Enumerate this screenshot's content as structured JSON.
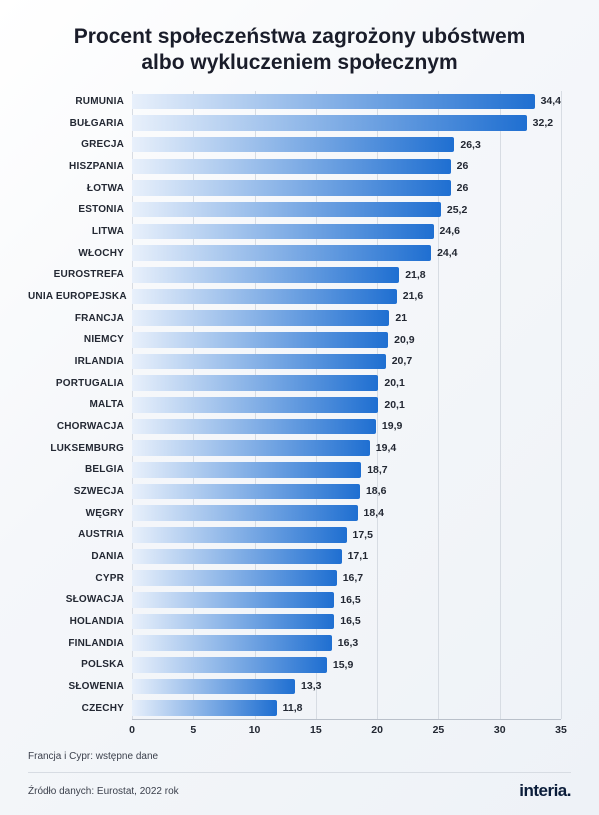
{
  "title_line1": "Procent społeczeństwa zagrożony ubóstwem",
  "title_line2": "albo wykluczeniem społecznym",
  "note": "Francja i Cypr: wstępne dane",
  "source": "Źródło danych: Eurostat, 2022 rok",
  "brand": "interia",
  "chart": {
    "type": "horizontal-bar",
    "xmin": 0,
    "xmax": 35,
    "tick_step": 5,
    "ticks": [
      0,
      5,
      10,
      15,
      20,
      25,
      30,
      35
    ],
    "bar_gradient_from": "#e8f0fb",
    "bar_gradient_to": "#1f6fd1",
    "grid_color": "#d7dce3",
    "axis_color": "#b9c0ca",
    "label_color": "#232833",
    "label_fontsize": 10,
    "value_fontsize": 10.5,
    "title_fontsize": 21,
    "background_from": "#ffffff",
    "background_to": "#eef2f7",
    "items": [
      {
        "label": "RUMUNIA",
        "value": 34.4,
        "display": "34,4"
      },
      {
        "label": "BUŁGARIA",
        "value": 32.2,
        "display": "32,2"
      },
      {
        "label": "GRECJA",
        "value": 26.3,
        "display": "26,3"
      },
      {
        "label": "HISZPANIA",
        "value": 26.0,
        "display": "26"
      },
      {
        "label": "ŁOTWA",
        "value": 26.0,
        "display": "26"
      },
      {
        "label": "ESTONIA",
        "value": 25.2,
        "display": "25,2"
      },
      {
        "label": "LITWA",
        "value": 24.6,
        "display": "24,6"
      },
      {
        "label": "WŁOCHY",
        "value": 24.4,
        "display": "24,4"
      },
      {
        "label": "EUROSTREFA",
        "value": 21.8,
        "display": "21,8"
      },
      {
        "label": "UNIA EUROPEJSKA",
        "value": 21.6,
        "display": "21,6"
      },
      {
        "label": "FRANCJA",
        "value": 21.0,
        "display": "21"
      },
      {
        "label": "NIEMCY",
        "value": 20.9,
        "display": "20,9"
      },
      {
        "label": "IRLANDIA",
        "value": 20.7,
        "display": "20,7"
      },
      {
        "label": "PORTUGALIA",
        "value": 20.1,
        "display": "20,1"
      },
      {
        "label": "MALTA",
        "value": 20.1,
        "display": "20,1"
      },
      {
        "label": "CHORWACJA",
        "value": 19.9,
        "display": "19,9"
      },
      {
        "label": "LUKSEMBURG",
        "value": 19.4,
        "display": "19,4"
      },
      {
        "label": "BELGIA",
        "value": 18.7,
        "display": "18,7"
      },
      {
        "label": "SZWECJA",
        "value": 18.6,
        "display": "18,6"
      },
      {
        "label": "WĘGRY",
        "value": 18.4,
        "display": "18,4"
      },
      {
        "label": "AUSTRIA",
        "value": 17.5,
        "display": "17,5"
      },
      {
        "label": "DANIA",
        "value": 17.1,
        "display": "17,1"
      },
      {
        "label": "CYPR",
        "value": 16.7,
        "display": "16,7"
      },
      {
        "label": "SŁOWACJA",
        "value": 16.5,
        "display": "16,5"
      },
      {
        "label": "HOLANDIA",
        "value": 16.5,
        "display": "16,5"
      },
      {
        "label": "FINLANDIA",
        "value": 16.3,
        "display": "16,3"
      },
      {
        "label": "POLSKA",
        "value": 15.9,
        "display": "15,9"
      },
      {
        "label": "SŁOWENIA",
        "value": 13.3,
        "display": "13,3"
      },
      {
        "label": "CZECHY",
        "value": 11.8,
        "display": "11,8"
      }
    ]
  }
}
